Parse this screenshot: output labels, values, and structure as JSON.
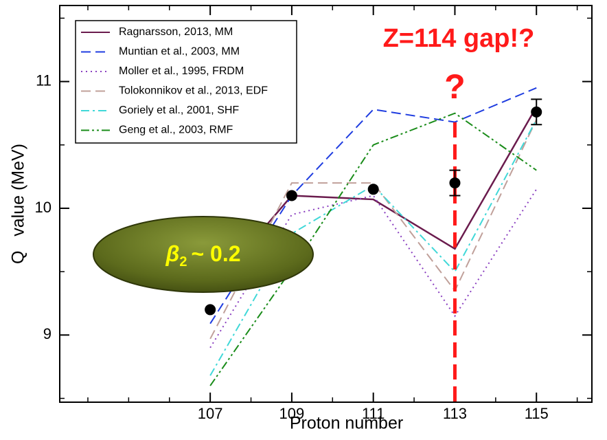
{
  "chart_data": {
    "type": "line",
    "x_label": "Proton number",
    "y_label": "Q   value (MeV)",
    "x": [
      107,
      109,
      111,
      113,
      115
    ],
    "xlim": [
      103.31,
      116.36
    ],
    "ylim": [
      8.47,
      11.6
    ],
    "xticks": [
      107,
      109,
      111,
      113,
      115
    ],
    "xminorticks": [
      104,
      105,
      106,
      107,
      108,
      109,
      110,
      111,
      112,
      113,
      114,
      115,
      116
    ],
    "yticks": [
      9,
      10,
      11
    ],
    "yminorticks": [
      8.5,
      9.5,
      10.5,
      11.5
    ],
    "legend": "top-left",
    "series": [
      {
        "name": "Ragnarsson, 2013, MM",
        "color": "#6a1b4d",
        "style": "solid",
        "values": [
          9.35,
          10.1,
          10.07,
          9.68,
          10.8
        ]
      },
      {
        "name": "Muntian et al., 2003, MM",
        "color": "#1f3de0",
        "style": "dashed",
        "values": [
          9.09,
          10.1,
          10.78,
          10.68,
          10.95
        ]
      },
      {
        "name": "Moller et al., 1995, FRDM",
        "color": "#8a3fc0",
        "style": "dotted",
        "values": [
          8.9,
          9.95,
          10.1,
          9.15,
          10.15
        ]
      },
      {
        "name": "Tolokonnikov et al., 2013, EDF",
        "color": "#c0a09a",
        "style": "dashed",
        "values": [
          8.97,
          10.2,
          10.2,
          9.35,
          10.7
        ]
      },
      {
        "name": "Goriely et al., 2001, SHF",
        "color": "#40d8d8",
        "style": "dashdot",
        "values": [
          8.68,
          9.8,
          10.18,
          9.5,
          10.7
        ]
      },
      {
        "name": "Geng et al., 2003, RMF",
        "color": "#1a8c1a",
        "style": "dashdotdot",
        "values": [
          8.6,
          9.52,
          10.5,
          10.75,
          10.3
        ]
      }
    ],
    "experiment": {
      "color": "#000000",
      "values": [
        9.2,
        10.1,
        10.15,
        10.2,
        10.76
      ],
      "errors": [
        null,
        null,
        null,
        0.1,
        0.1
      ]
    },
    "annotations": {
      "gap_title": "Z=114 gap!?",
      "question": "?",
      "marker_x": 113,
      "deformation": {
        "symbol": "β",
        "subscript": "2",
        "text": "~ 0.2"
      }
    }
  }
}
